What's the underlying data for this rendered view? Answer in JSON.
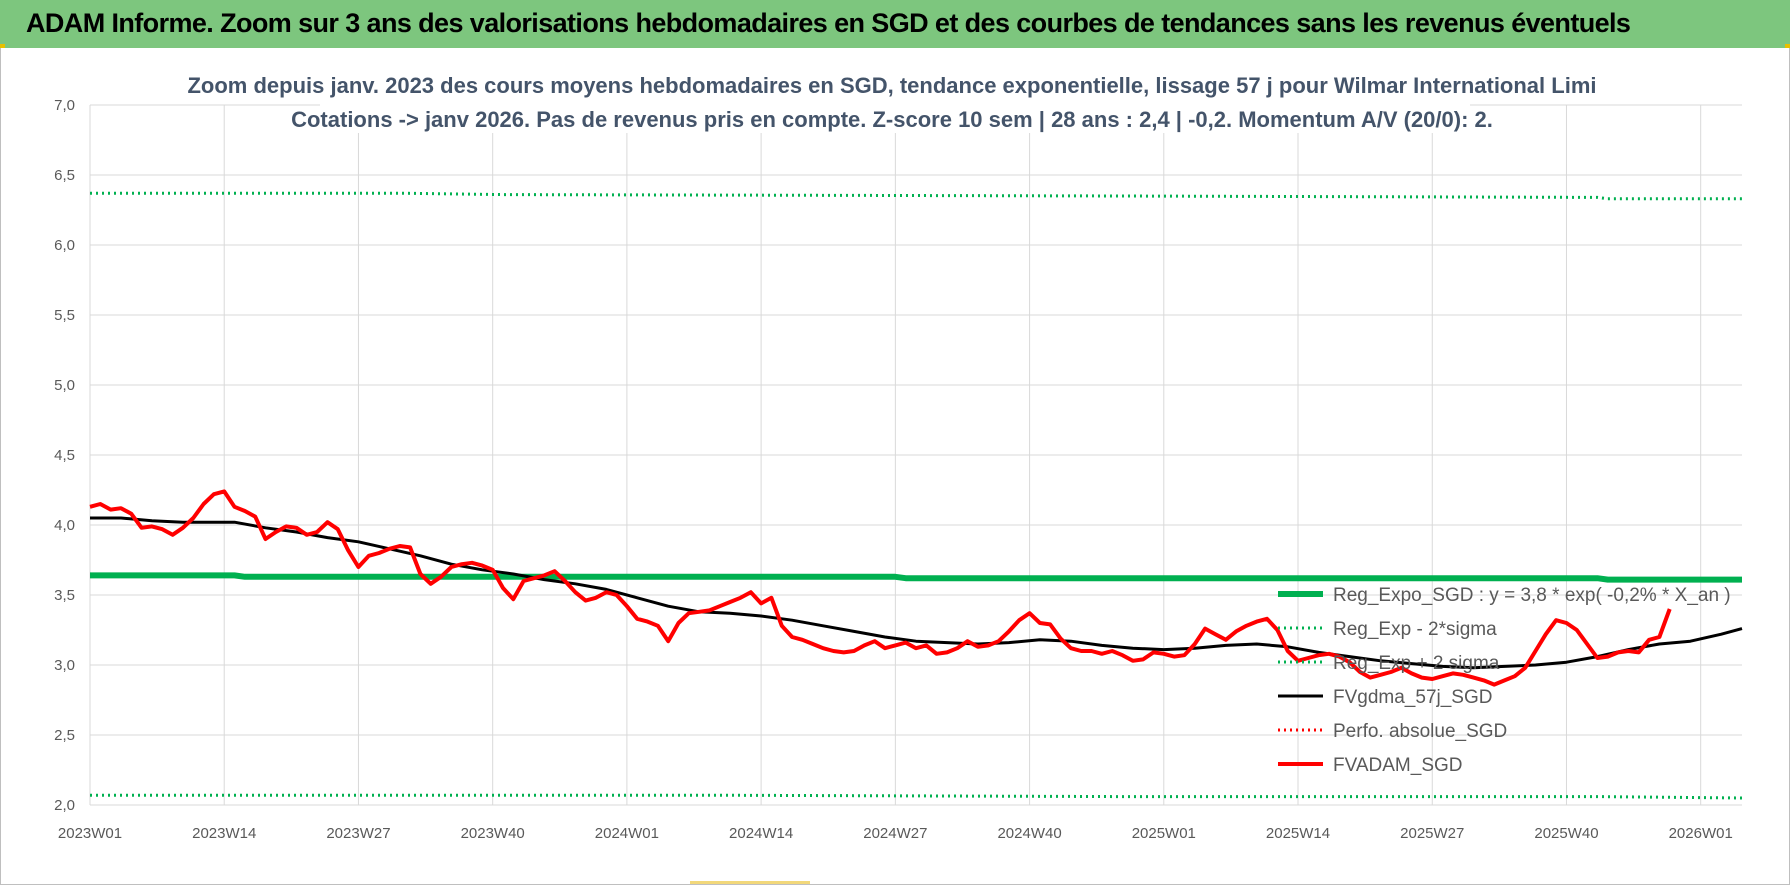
{
  "header": {
    "title": "ADAM Informe. Zoom sur 3 ans des valorisations hebdomadaires en SGD et des courbes de tendances sans les revenus éventuels"
  },
  "chart_data": {
    "type": "line",
    "title": [
      "Zoom depuis janv. 2023 des cours moyens hebdomadaires en SGD, tendance exponentielle, lissage 57 j pour Wilmar International Limi",
      "Cotations -> janv 2026. Pas de revenus pris en compte. Z-score 10 sem | 28 ans : 2,4 | -0,2. Momentum A/V (20/0): 2."
    ],
    "ylim": [
      2.0,
      7.0
    ],
    "yticks": [
      7.0,
      6.5,
      6.0,
      5.5,
      5.0,
      4.5,
      4.0,
      3.5,
      3.0,
      2.5,
      2.0
    ],
    "ytick_labels": [
      "7,0",
      "6,5",
      "6,0",
      "5,5",
      "5,0",
      "4,5",
      "4,0",
      "3,5",
      "3,0",
      "2,5",
      "2,0"
    ],
    "n_weeks": 160,
    "xtick_labels": [
      "2023W01",
      "2023W14",
      "2023W27",
      "2023W40",
      "2024W01",
      "2024W14",
      "2024W27",
      "2024W40",
      "2025W01",
      "2025W14",
      "2025W27",
      "2025W40",
      "2026W01"
    ],
    "xtick_index": [
      0,
      13,
      26,
      39,
      52,
      65,
      78,
      91,
      104,
      117,
      130,
      143,
      156
    ],
    "grid": true,
    "legend_position": "bottom-right",
    "series": [
      {
        "name": "Reg_Expo_SGD : y = 3,8 * exp( -0,2% *  X_an )",
        "color": "#00b050",
        "style": "solid",
        "width": 6,
        "points": [
          [
            0,
            3.64
          ],
          [
            14,
            3.64
          ],
          [
            15,
            3.63
          ],
          [
            78,
            3.63
          ],
          [
            79,
            3.62
          ],
          [
            146,
            3.62
          ],
          [
            147,
            3.61
          ],
          [
            160,
            3.61
          ]
        ]
      },
      {
        "name": "Reg_Exp - 2*sigma",
        "color": "#00b050",
        "style": "dotted",
        "width": 3,
        "points": [
          [
            0,
            2.07
          ],
          [
            60,
            2.07
          ],
          [
            100,
            2.06
          ],
          [
            146,
            2.06
          ],
          [
            160,
            2.05
          ]
        ]
      },
      {
        "name": "Reg_Exp + 2 sigma",
        "color": "#00b050",
        "style": "dotted",
        "width": 3,
        "points": [
          [
            0,
            6.37
          ],
          [
            30,
            6.37
          ],
          [
            40,
            6.36
          ],
          [
            100,
            6.35
          ],
          [
            146,
            6.34
          ],
          [
            147,
            6.33
          ],
          [
            160,
            6.33
          ]
        ]
      },
      {
        "name": "FVgdma_57j_SGD",
        "color": "#000000",
        "style": "solid",
        "width": 3,
        "points": [
          [
            0,
            4.05
          ],
          [
            3,
            4.05
          ],
          [
            6,
            4.03
          ],
          [
            9,
            4.02
          ],
          [
            14,
            4.02
          ],
          [
            17,
            3.98
          ],
          [
            20,
            3.95
          ],
          [
            23,
            3.91
          ],
          [
            26,
            3.88
          ],
          [
            29,
            3.83
          ],
          [
            32,
            3.78
          ],
          [
            35,
            3.72
          ],
          [
            38,
            3.68
          ],
          [
            41,
            3.65
          ],
          [
            44,
            3.61
          ],
          [
            47,
            3.58
          ],
          [
            50,
            3.54
          ],
          [
            53,
            3.48
          ],
          [
            56,
            3.42
          ],
          [
            59,
            3.38
          ],
          [
            62,
            3.37
          ],
          [
            65,
            3.35
          ],
          [
            68,
            3.32
          ],
          [
            71,
            3.28
          ],
          [
            74,
            3.24
          ],
          [
            77,
            3.2
          ],
          [
            80,
            3.17
          ],
          [
            83,
            3.16
          ],
          [
            86,
            3.15
          ],
          [
            89,
            3.16
          ],
          [
            92,
            3.18
          ],
          [
            95,
            3.17
          ],
          [
            98,
            3.14
          ],
          [
            101,
            3.12
          ],
          [
            104,
            3.11
          ],
          [
            107,
            3.12
          ],
          [
            110,
            3.14
          ],
          [
            113,
            3.15
          ],
          [
            116,
            3.13
          ],
          [
            119,
            3.09
          ],
          [
            122,
            3.06
          ],
          [
            125,
            3.03
          ],
          [
            128,
            3.01
          ],
          [
            131,
            2.99
          ],
          [
            134,
            2.98
          ],
          [
            137,
            2.99
          ],
          [
            140,
            3.0
          ],
          [
            143,
            3.02
          ],
          [
            146,
            3.06
          ],
          [
            149,
            3.11
          ],
          [
            152,
            3.15
          ],
          [
            155,
            3.17
          ],
          [
            158,
            3.22
          ],
          [
            160,
            3.26
          ]
        ]
      },
      {
        "name": "Perfo. absolue_SGD",
        "color": "#ff0000",
        "style": "dotted",
        "width": 3,
        "points": []
      },
      {
        "name": "FVADAM_SGD",
        "color": "#ff0000",
        "style": "solid",
        "width": 4,
        "points": [
          [
            0,
            4.13
          ],
          [
            1,
            4.15
          ],
          [
            2,
            4.11
          ],
          [
            3,
            4.12
          ],
          [
            4,
            4.08
          ],
          [
            5,
            3.98
          ],
          [
            6,
            3.99
          ],
          [
            7,
            3.97
          ],
          [
            8,
            3.93
          ],
          [
            9,
            3.98
          ],
          [
            10,
            4.05
          ],
          [
            11,
            4.15
          ],
          [
            12,
            4.22
          ],
          [
            13,
            4.24
          ],
          [
            14,
            4.13
          ],
          [
            15,
            4.1
          ],
          [
            16,
            4.06
          ],
          [
            17,
            3.9
          ],
          [
            18,
            3.95
          ],
          [
            19,
            3.99
          ],
          [
            20,
            3.98
          ],
          [
            21,
            3.93
          ],
          [
            22,
            3.95
          ],
          [
            23,
            4.02
          ],
          [
            24,
            3.97
          ],
          [
            25,
            3.82
          ],
          [
            26,
            3.7
          ],
          [
            27,
            3.78
          ],
          [
            28,
            3.8
          ],
          [
            29,
            3.83
          ],
          [
            30,
            3.85
          ],
          [
            31,
            3.84
          ],
          [
            32,
            3.65
          ],
          [
            33,
            3.58
          ],
          [
            34,
            3.63
          ],
          [
            35,
            3.7
          ],
          [
            36,
            3.72
          ],
          [
            37,
            3.73
          ],
          [
            38,
            3.71
          ],
          [
            39,
            3.68
          ],
          [
            40,
            3.55
          ],
          [
            41,
            3.47
          ],
          [
            42,
            3.6
          ],
          [
            43,
            3.62
          ],
          [
            44,
            3.64
          ],
          [
            45,
            3.67
          ],
          [
            46,
            3.6
          ],
          [
            47,
            3.52
          ],
          [
            48,
            3.46
          ],
          [
            49,
            3.48
          ],
          [
            50,
            3.52
          ],
          [
            51,
            3.5
          ],
          [
            52,
            3.42
          ],
          [
            53,
            3.33
          ],
          [
            54,
            3.31
          ],
          [
            55,
            3.28
          ],
          [
            56,
            3.17
          ],
          [
            57,
            3.3
          ],
          [
            58,
            3.37
          ],
          [
            59,
            3.38
          ],
          [
            60,
            3.39
          ],
          [
            61,
            3.42
          ],
          [
            62,
            3.45
          ],
          [
            63,
            3.48
          ],
          [
            64,
            3.52
          ],
          [
            65,
            3.44
          ],
          [
            66,
            3.48
          ],
          [
            67,
            3.28
          ],
          [
            68,
            3.2
          ],
          [
            69,
            3.18
          ],
          [
            70,
            3.15
          ],
          [
            71,
            3.12
          ],
          [
            72,
            3.1
          ],
          [
            73,
            3.09
          ],
          [
            74,
            3.1
          ],
          [
            75,
            3.14
          ],
          [
            76,
            3.17
          ],
          [
            77,
            3.12
          ],
          [
            78,
            3.14
          ],
          [
            79,
            3.16
          ],
          [
            80,
            3.12
          ],
          [
            81,
            3.14
          ],
          [
            82,
            3.08
          ],
          [
            83,
            3.09
          ],
          [
            84,
            3.12
          ],
          [
            85,
            3.17
          ],
          [
            86,
            3.13
          ],
          [
            87,
            3.14
          ],
          [
            88,
            3.17
          ],
          [
            89,
            3.24
          ],
          [
            90,
            3.32
          ],
          [
            91,
            3.37
          ],
          [
            92,
            3.3
          ],
          [
            93,
            3.29
          ],
          [
            94,
            3.19
          ],
          [
            95,
            3.12
          ],
          [
            96,
            3.1
          ],
          [
            97,
            3.1
          ],
          [
            98,
            3.08
          ],
          [
            99,
            3.1
          ],
          [
            100,
            3.07
          ],
          [
            101,
            3.03
          ],
          [
            102,
            3.04
          ],
          [
            103,
            3.09
          ],
          [
            104,
            3.08
          ],
          [
            105,
            3.06
          ],
          [
            106,
            3.07
          ],
          [
            107,
            3.15
          ],
          [
            108,
            3.26
          ],
          [
            109,
            3.22
          ],
          [
            110,
            3.18
          ],
          [
            111,
            3.24
          ],
          [
            112,
            3.28
          ],
          [
            113,
            3.31
          ],
          [
            114,
            3.33
          ],
          [
            115,
            3.25
          ],
          [
            116,
            3.1
          ],
          [
            117,
            3.03
          ],
          [
            118,
            3.05
          ],
          [
            119,
            3.07
          ],
          [
            120,
            3.08
          ],
          [
            121,
            3.06
          ],
          [
            122,
            3.02
          ],
          [
            123,
            2.95
          ],
          [
            124,
            2.91
          ],
          [
            125,
            2.93
          ],
          [
            126,
            2.95
          ],
          [
            127,
            2.98
          ],
          [
            128,
            2.94
          ],
          [
            129,
            2.91
          ],
          [
            130,
            2.9
          ],
          [
            131,
            2.92
          ],
          [
            132,
            2.94
          ],
          [
            133,
            2.93
          ],
          [
            134,
            2.91
          ],
          [
            135,
            2.89
          ],
          [
            136,
            2.86
          ],
          [
            137,
            2.89
          ],
          [
            138,
            2.92
          ],
          [
            139,
            2.98
          ],
          [
            140,
            3.1
          ],
          [
            141,
            3.22
          ],
          [
            142,
            3.32
          ],
          [
            143,
            3.3
          ],
          [
            144,
            3.25
          ],
          [
            145,
            3.15
          ],
          [
            146,
            3.05
          ],
          [
            147,
            3.06
          ],
          [
            148,
            3.09
          ],
          [
            149,
            3.1
          ],
          [
            150,
            3.09
          ],
          [
            151,
            3.18
          ],
          [
            152,
            3.2
          ],
          [
            153,
            3.4
          ]
        ]
      }
    ]
  }
}
